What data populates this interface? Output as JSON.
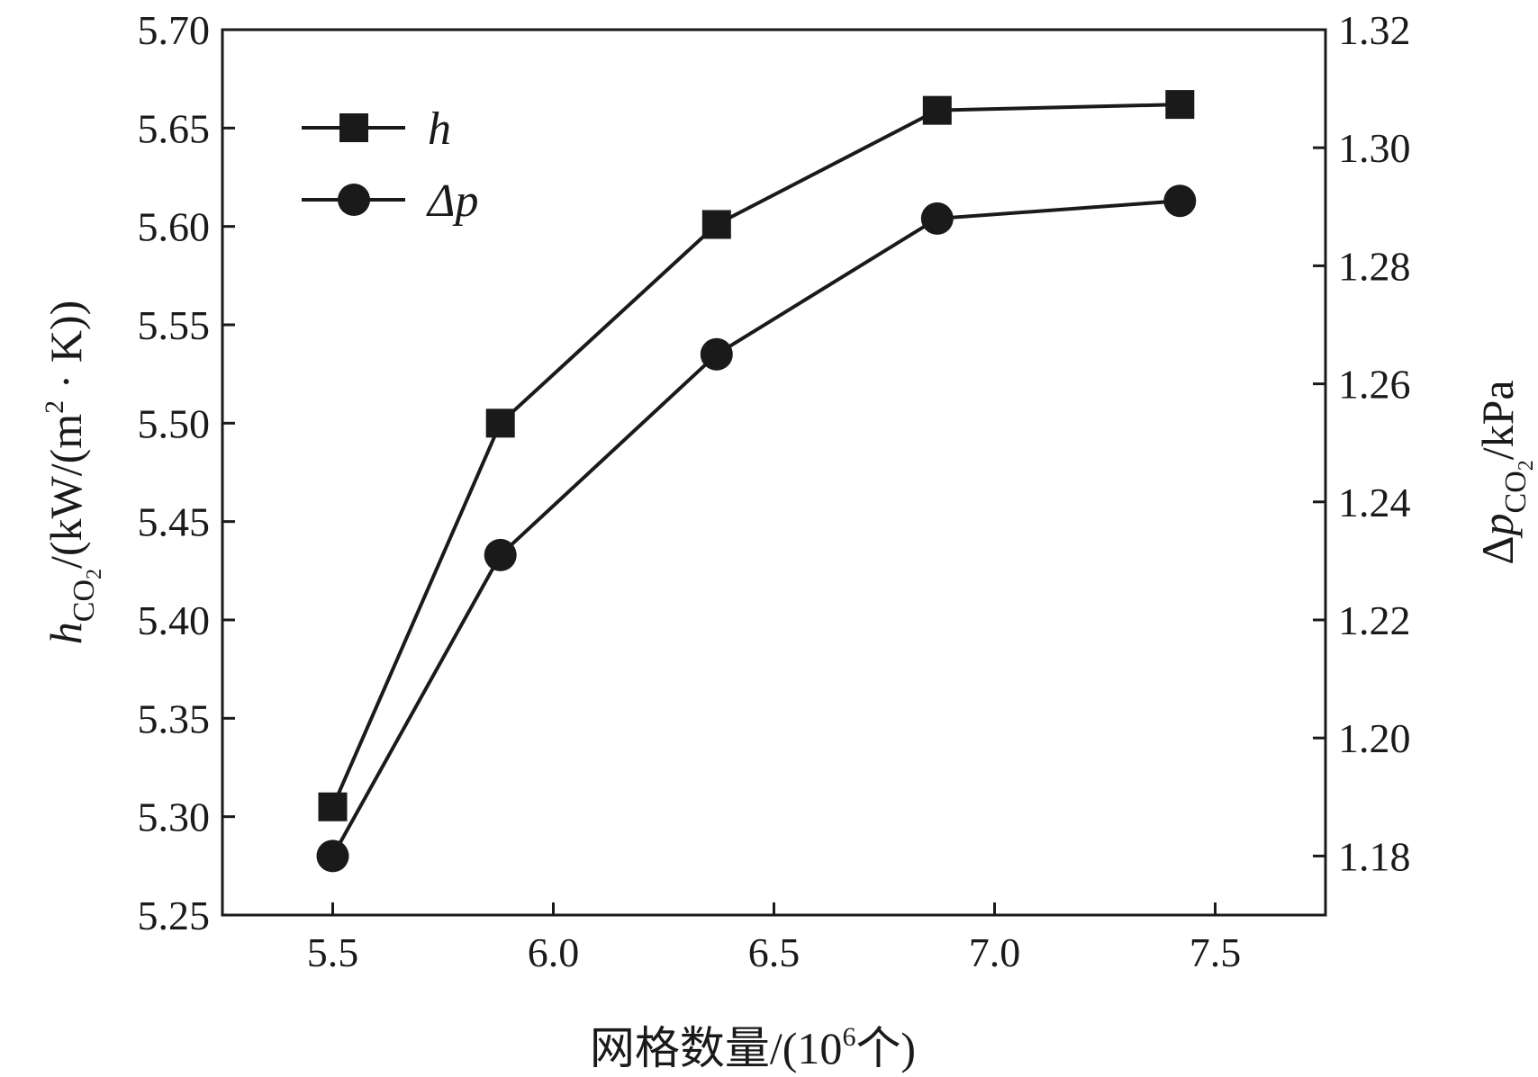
{
  "chart_data": {
    "type": "line",
    "xlabel": "网格数量/(10⁶个)",
    "ylabel_left": "hCO₂/(kW/(m²·K))",
    "ylabel_right": "ΔpCO₂/kPa",
    "xlim": [
      5.25,
      7.75
    ],
    "ylim_left": [
      5.25,
      5.7
    ],
    "ylim_right": [
      1.17,
      1.32
    ],
    "x_ticks": [
      "5.5",
      "6.0",
      "6.5",
      "7.0",
      "7.5"
    ],
    "y_left_ticks": [
      "5.25",
      "5.30",
      "5.35",
      "5.40",
      "5.45",
      "5.50",
      "5.55",
      "5.60",
      "5.65",
      "5.70"
    ],
    "y_right_ticks": [
      "1.18",
      "1.20",
      "1.22",
      "1.24",
      "1.26",
      "1.28",
      "1.30",
      "1.32"
    ],
    "grid": false,
    "legend_position": "top-left",
    "series": [
      {
        "name": "h",
        "axis": "left",
        "marker": "square",
        "x": [
          5.5,
          5.88,
          6.37,
          6.87,
          7.42
        ],
        "values": [
          5.305,
          5.5,
          5.601,
          5.659,
          5.662
        ]
      },
      {
        "name": "Δp",
        "axis": "right",
        "marker": "circle",
        "x": [
          5.5,
          5.88,
          6.37,
          6.87,
          7.42
        ],
        "values": [
          1.18,
          1.231,
          1.265,
          1.288,
          1.291
        ]
      }
    ],
    "colors": {
      "line": "#1a1a1a",
      "marker": "#1a1a1a",
      "axis": "#1a1a1a"
    }
  }
}
